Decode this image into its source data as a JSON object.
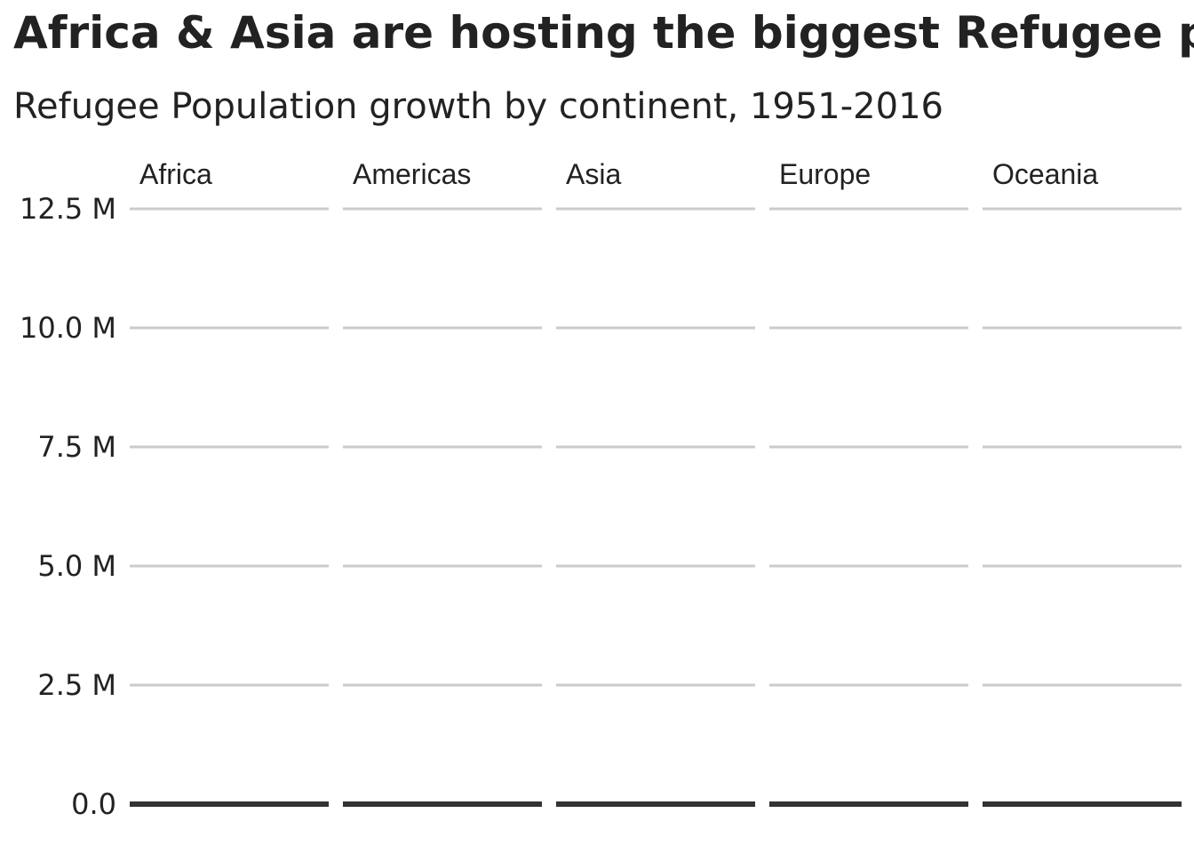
{
  "chart_data": {
    "type": "area",
    "title": "Africa & Asia are hosting the biggest Refugee populations",
    "subtitle": "Refugee Population growth by continent, 1951-2016",
    "xlabel": "",
    "ylabel": "",
    "x_range": [
      1951,
      2016
    ],
    "ylim": [
      0,
      12500000
    ],
    "y_ticks": [
      {
        "value": 0,
        "label": "0.0"
      },
      {
        "value": 2500000,
        "label": "2.5 M"
      },
      {
        "value": 5000000,
        "label": "5.0 M"
      },
      {
        "value": 7500000,
        "label": "7.5 M"
      },
      {
        "value": 10000000,
        "label": "10.0 M"
      },
      {
        "value": 12500000,
        "label": "12.5 M"
      }
    ],
    "facets": [
      "Africa",
      "Americas",
      "Asia",
      "Europe",
      "Oceania"
    ],
    "grid": "horizontal",
    "series": [],
    "colors": {
      "text": "#222222",
      "grid": "#cbcbcb",
      "baseline": "#333333",
      "background": "#ffffff"
    }
  }
}
